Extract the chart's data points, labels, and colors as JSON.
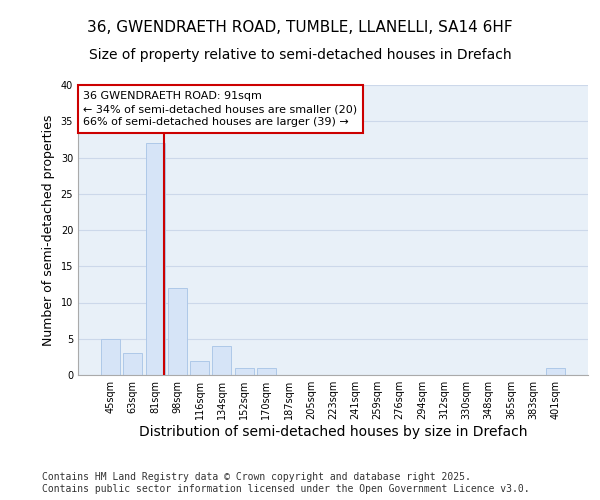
{
  "title1": "36, GWENDRAETH ROAD, TUMBLE, LLANELLI, SA14 6HF",
  "title2": "Size of property relative to semi-detached houses in Drefach",
  "xlabel": "Distribution of semi-detached houses by size in Drefach",
  "ylabel": "Number of semi-detached properties",
  "categories": [
    "45sqm",
    "63sqm",
    "81sqm",
    "98sqm",
    "116sqm",
    "134sqm",
    "152sqm",
    "170sqm",
    "187sqm",
    "205sqm",
    "223sqm",
    "241sqm",
    "259sqm",
    "276sqm",
    "294sqm",
    "312sqm",
    "330sqm",
    "348sqm",
    "365sqm",
    "383sqm",
    "401sqm"
  ],
  "values": [
    5,
    3,
    32,
    12,
    2,
    4,
    1,
    1,
    0,
    0,
    0,
    0,
    0,
    0,
    0,
    0,
    0,
    0,
    0,
    0,
    1
  ],
  "bar_color": "#d6e4f7",
  "bar_edge_color": "#aec8e8",
  "grid_color": "#ccd8ea",
  "property_line_x": 2.42,
  "property_line_color": "#cc0000",
  "annotation_text": "36 GWENDRAETH ROAD: 91sqm\n← 34% of semi-detached houses are smaller (20)\n66% of semi-detached houses are larger (39) →",
  "annotation_box_facecolor": "#ffffff",
  "annotation_border_color": "#cc0000",
  "footer_text": "Contains HM Land Registry data © Crown copyright and database right 2025.\nContains public sector information licensed under the Open Government Licence v3.0.",
  "ylim": [
    0,
    40
  ],
  "yticks": [
    0,
    5,
    10,
    15,
    20,
    25,
    30,
    35,
    40
  ],
  "fig_background": "#ffffff",
  "plot_background": "#e8f0f8",
  "title1_fontsize": 11,
  "title2_fontsize": 10,
  "xlabel_fontsize": 10,
  "ylabel_fontsize": 9,
  "tick_fontsize": 7,
  "annotation_fontsize": 8,
  "footer_fontsize": 7
}
